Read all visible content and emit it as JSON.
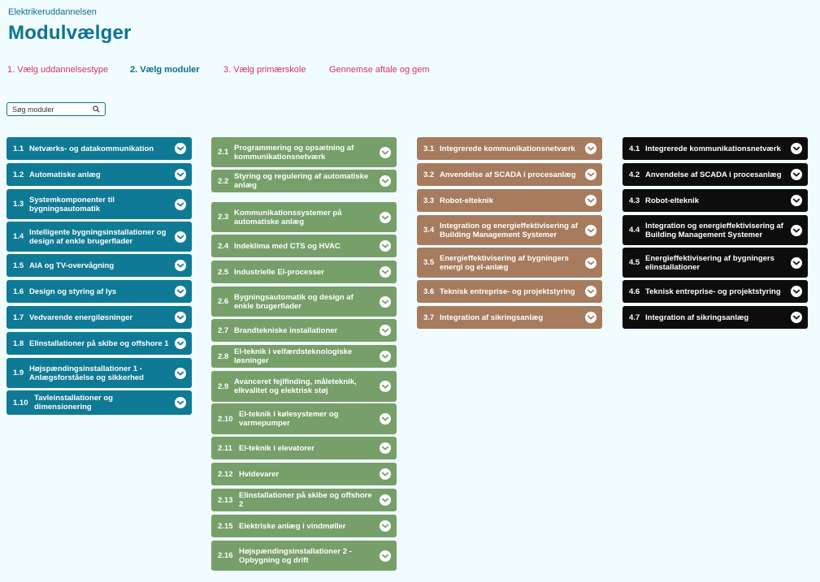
{
  "header": {
    "breadcrumb": "Elektrikeruddannelsen",
    "title": "Modulvælger"
  },
  "steps": [
    {
      "label": "1. Vælg uddannelsestype",
      "active": false
    },
    {
      "label": "2. Vælg moduler",
      "active": true
    },
    {
      "label": "3. Vælg primærskole",
      "active": false
    },
    {
      "label": "Gennemse aftale og gem",
      "active": false
    }
  ],
  "search": {
    "placeholder": "Søg moduler",
    "icon": "search-icon"
  },
  "columns": [
    {
      "color": "#0f7a95",
      "modules": [
        {
          "num": "1.1",
          "title": "Netværks- og datakommunikation"
        },
        {
          "num": "1.2",
          "title": "Automatiske anlæg"
        },
        {
          "num": "1.3",
          "title": "Systemkomponenter til bygningsautomatik"
        },
        {
          "num": "1.4",
          "title": "Intelligente bygningsinstallationer og design af enkle brugerflader"
        },
        {
          "num": "1.5",
          "title": "AIA og TV-overvågning"
        },
        {
          "num": "1.6",
          "title": "Design og styring af lys"
        },
        {
          "num": "1.7",
          "title": "Vedvarende energiløsninger"
        },
        {
          "num": "1.8",
          "title": "Elinstallationer på skibe og offshore 1"
        },
        {
          "num": "1.9",
          "title": "Højspændingsinstallationer 1 - Anlægsforståelse og sikkerhed"
        },
        {
          "num": "1.10",
          "title": "Tavleinstallationer og dimensionering"
        }
      ]
    },
    {
      "color": "#779f6a",
      "modules": [
        {
          "num": "2.1",
          "title": "Programmering og opsætning af kommunikationsnetværk"
        },
        {
          "num": "2.2",
          "title": "Styring og regulering af automatiske anlæg"
        },
        {
          "num": "2.3",
          "title": "Kommunikationssystemer på automatiske anlæg"
        },
        {
          "num": "2.4",
          "title": "Indeklima med CTS og HVAC"
        },
        {
          "num": "2.5",
          "title": "Industrielle El-processer"
        },
        {
          "num": "2.6",
          "title": "Bygningsautomatik og design af enkle brugerflader"
        },
        {
          "num": "2.7",
          "title": "Brandtekniske installationer"
        },
        {
          "num": "2.8",
          "title": "El-teknik i velfærdsteknologiske løsninger"
        },
        {
          "num": "2.9",
          "title": "Avanceret fejlfinding, måleteknik, elkvalitet og elektrisk støj"
        },
        {
          "num": "2.10",
          "title": "El-teknik i kølesystemer og varmepumper"
        },
        {
          "num": "2.11",
          "title": "El-teknik i elevatorer"
        },
        {
          "num": "2.12",
          "title": "Hvidevarer"
        },
        {
          "num": "2.13",
          "title": "Elinstallationer på skibe og offshore 2"
        },
        {
          "num": "2.15",
          "title": "Elektriske anlæg i vindmøller"
        },
        {
          "num": "2.16",
          "title": "Højspændingsinstallationer 2 - Opbygning og drift"
        }
      ]
    },
    {
      "color": "#a67b5e",
      "modules": [
        {
          "num": "3.1",
          "title": "Integrerede kommunikationsnetværk"
        },
        {
          "num": "3.2",
          "title": "Anvendelse af SCADA i procesanlæg"
        },
        {
          "num": "3.3",
          "title": "Robot-elteknik"
        },
        {
          "num": "3.4",
          "title": "Integration og energieffektivisering af Building Management Systemer"
        },
        {
          "num": "3.5",
          "title": "Energieffektivisering af bygningers energi og el-anlæg"
        },
        {
          "num": "3.6",
          "title": "Teknisk entreprise- og projektstyring"
        },
        {
          "num": "3.7",
          "title": "Integration af sikringsanlæg"
        }
      ]
    },
    {
      "color": "#0d0d0d",
      "modules": [
        {
          "num": "4.1",
          "title": "Integrerede kommunikationsnetværk"
        },
        {
          "num": "4.2",
          "title": "Anvendelse af SCADA i procesanlæg"
        },
        {
          "num": "4.3",
          "title": "Robot-elteknik"
        },
        {
          "num": "4.4",
          "title": "Integration og energieffektivisering af Building Management Systemer"
        },
        {
          "num": "4.5",
          "title": "Energieffektivisering af bygningers elinstallationer"
        },
        {
          "num": "4.6",
          "title": "Teknisk entreprise- og projektstyring"
        },
        {
          "num": "4.7",
          "title": "Integration af sikringsanlæg"
        }
      ]
    }
  ]
}
